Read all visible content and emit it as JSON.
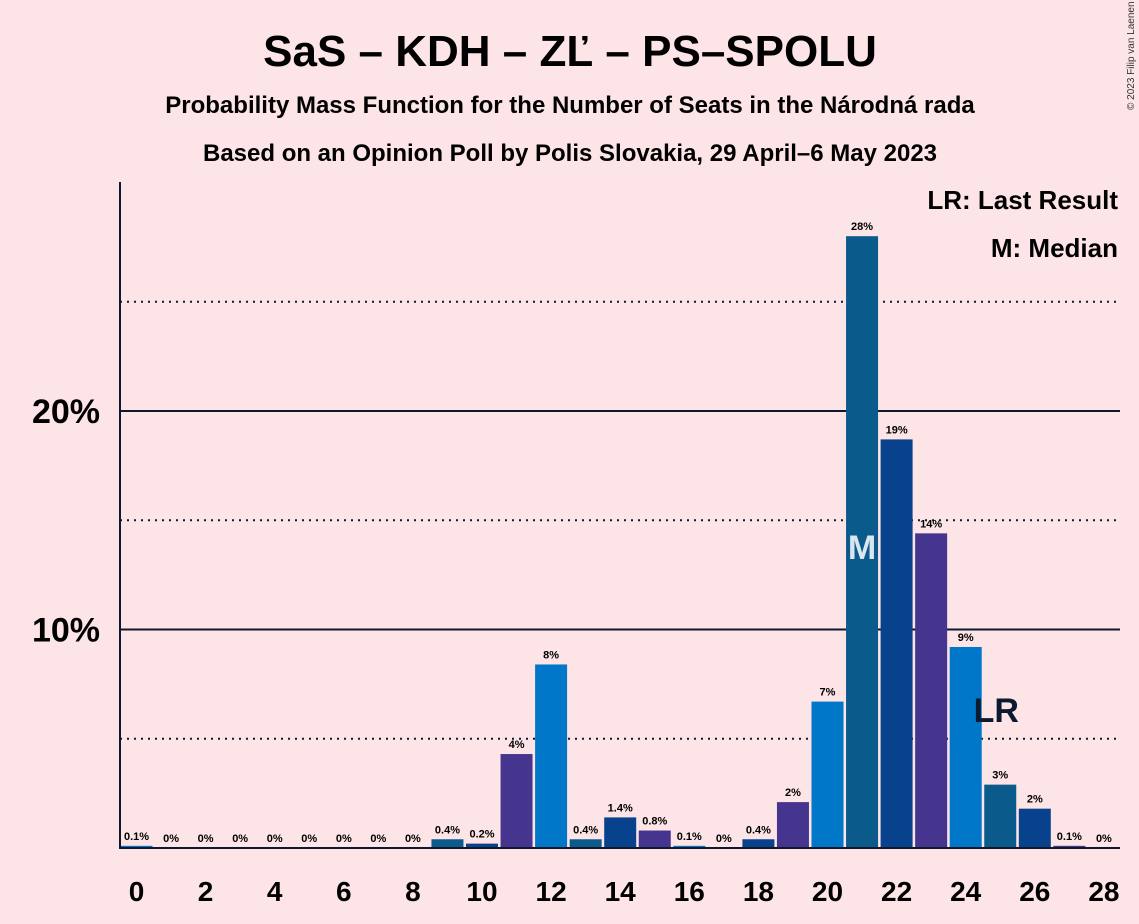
{
  "title": "SaS – KDH – ZĽ – PS–SPOLU",
  "subtitle1": "Probability Mass Function for the Number of Seats in the Národná rada",
  "subtitle2": "Based on an Opinion Poll by Polis Slovakia, 29 April–6 May 2023",
  "copyright": "© 2023 Filip van Laenen",
  "legend": {
    "lr": "LR: Last Result",
    "m": "M: Median"
  },
  "marks": {
    "median_label": "M",
    "median_seat": 21,
    "last_result_label": "LR",
    "last_result_seat": 25
  },
  "chart_data": {
    "type": "bar",
    "xlabel": "",
    "ylabel": "",
    "ylim": [
      0,
      29
    ],
    "ytick_values": [
      10,
      20
    ],
    "ytick_labels": [
      "10%",
      "20%"
    ],
    "major_gridlines": [
      10,
      20
    ],
    "minor_gridlines": [
      5,
      15,
      25
    ],
    "xtick_values": [
      0,
      2,
      4,
      6,
      8,
      10,
      12,
      14,
      16,
      18,
      20,
      22,
      24,
      26,
      28
    ],
    "categories": [
      0,
      1,
      2,
      3,
      4,
      5,
      6,
      7,
      8,
      9,
      10,
      11,
      12,
      13,
      14,
      15,
      16,
      17,
      18,
      19,
      20,
      21,
      22,
      23,
      24,
      25,
      26,
      27,
      28
    ],
    "values": [
      0.1,
      0,
      0,
      0,
      0,
      0,
      0,
      0,
      0,
      0.4,
      0.2,
      4.3,
      8.4,
      0.4,
      1.4,
      0.8,
      0.1,
      0,
      0.4,
      2.1,
      6.7,
      28,
      18.7,
      14.4,
      9.2,
      2.9,
      1.8,
      0.1,
      0
    ],
    "labels": [
      "0.1%",
      "0%",
      "0%",
      "0%",
      "0%",
      "0%",
      "0%",
      "0%",
      "0%",
      "0.4%",
      "0.2%",
      "4%",
      "8%",
      "0.4%",
      "1.4%",
      "0.8%",
      "0.1%",
      "0%",
      "0.4%",
      "2%",
      "7%",
      "28%",
      "19%",
      "14%",
      "9%",
      "3%",
      "2%",
      "0.1%",
      "0%"
    ],
    "colors": [
      "#0077c8",
      "#0a5a8c",
      "#08428c",
      "#45358f",
      "#0077c8",
      "#0a5a8c",
      "#08428c",
      "#45358f",
      "#0077c8",
      "#0a5a8c",
      "#08428c",
      "#45358f",
      "#0077c8",
      "#0a5a8c",
      "#08428c",
      "#45358f",
      "#0077c8",
      "#0a5a8c",
      "#08428c",
      "#45358f",
      "#0077c8",
      "#0a5a8c",
      "#08428c",
      "#45358f",
      "#0077c8",
      "#0a5a8c",
      "#08428c",
      "#45358f",
      "#0077c8"
    ]
  }
}
